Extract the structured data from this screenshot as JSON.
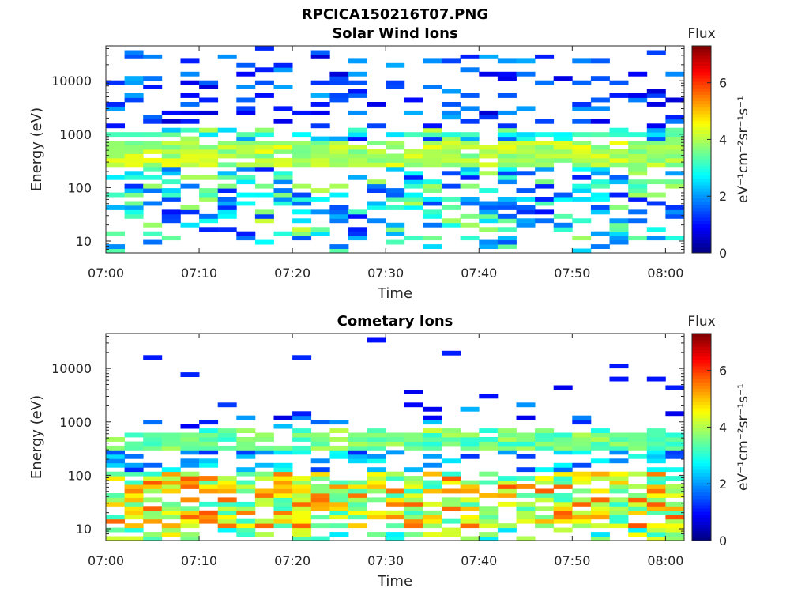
{
  "figure": {
    "title": "RPCICA150216T07.PNG"
  },
  "chart_data": [
    {
      "type": "heatmap",
      "title": "Solar Wind Ions",
      "xlabel": "Time",
      "ylabel": "Energy (eV)",
      "x_ticks": [
        "07:00",
        "07:10",
        "07:20",
        "07:30",
        "07:40",
        "07:50",
        "08:00"
      ],
      "x_range": [
        "07:00",
        "08:02"
      ],
      "y_scale": "log",
      "y_ticks": [
        10,
        100,
        1000,
        10000
      ],
      "ylim": [
        6,
        45000
      ],
      "colorbar": {
        "title": "Flux",
        "label": "eV⁻¹cm⁻²sr⁻¹s⁻¹",
        "ticks": [
          0,
          2,
          4,
          6
        ],
        "range": [
          0,
          7.3
        ]
      },
      "colormap": "jet",
      "description_values": {
        "main_band_energy_eV": [
          250,
          700
        ],
        "main_band_level": [
          3.5,
          4.5
        ],
        "secondary_band_energy_eV": [
          950,
          1150
        ],
        "secondary_band_level": [
          2.5,
          3.5
        ]
      }
    },
    {
      "type": "heatmap",
      "title": "Cometary Ions",
      "xlabel": "Time",
      "ylabel": "Energy (eV)",
      "x_ticks": [
        "07:00",
        "07:10",
        "07:20",
        "07:30",
        "07:40",
        "07:50",
        "08:00"
      ],
      "x_range": [
        "07:00",
        "08:02"
      ],
      "y_scale": "log",
      "y_ticks": [
        10,
        100,
        1000,
        10000
      ],
      "ylim": [
        6,
        45000
      ],
      "colorbar": {
        "title": "Flux",
        "label": "eV⁻¹cm⁻²sr⁻¹s⁻¹",
        "ticks": [
          0,
          2,
          4,
          6
        ],
        "range": [
          0,
          7.3
        ]
      },
      "colormap": "jet",
      "description_values": {
        "main_band_energy_eV": [
          280,
          600
        ],
        "main_band_level": [
          3.0,
          4.0
        ],
        "low_energy_population_eV": [
          10,
          120
        ],
        "low_energy_level": [
          3.0,
          5.8
        ]
      }
    }
  ]
}
